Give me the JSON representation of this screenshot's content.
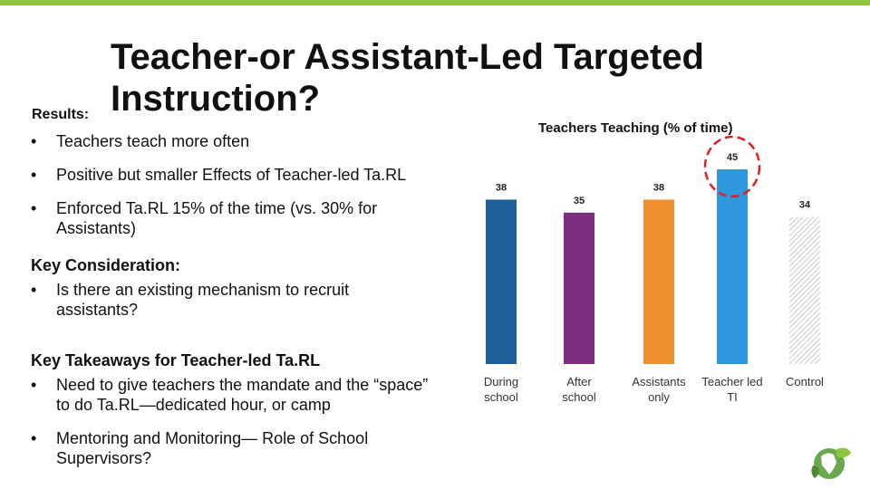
{
  "slide": {
    "title": "Teacher-or Assistant-Led Targeted Instruction?",
    "results_label": "Results:",
    "results_bullets": [
      "Teachers teach more often",
      "Positive but smaller Effects of Teacher-led Ta.RL",
      "Enforced Ta.RL 15% of the time (vs. 30% for Assistants)"
    ],
    "key_consideration": {
      "heading": "Key Consideration:",
      "bullets": [
        "Is there an existing mechanism to recruit assistants?"
      ]
    },
    "key_takeaways": {
      "heading": "Key Takeaways for Teacher-led Ta.RL",
      "bullets": [
        "Need to give teachers the mandate and the “space” to do Ta.RL—dedicated hour, or camp",
        "Mentoring and Monitoring— Role of School Supervisors?"
      ]
    }
  },
  "chart_data": {
    "type": "bar",
    "title": "Teachers Teaching (% of time)",
    "categories": [
      "During school",
      "After school",
      "Assistants only",
      "Teacher led TI",
      "Control"
    ],
    "values": [
      38,
      35,
      38,
      45,
      34
    ],
    "colors": [
      "#1f5f9b",
      "#7b2d7f",
      "#ec8f2e",
      "#2f97dc",
      "#d9d9d9"
    ],
    "highlight": {
      "category": "Teacher led TI",
      "color": "#e02020"
    },
    "ylim": [
      0,
      45
    ],
    "grid": false,
    "legend": "none"
  }
}
